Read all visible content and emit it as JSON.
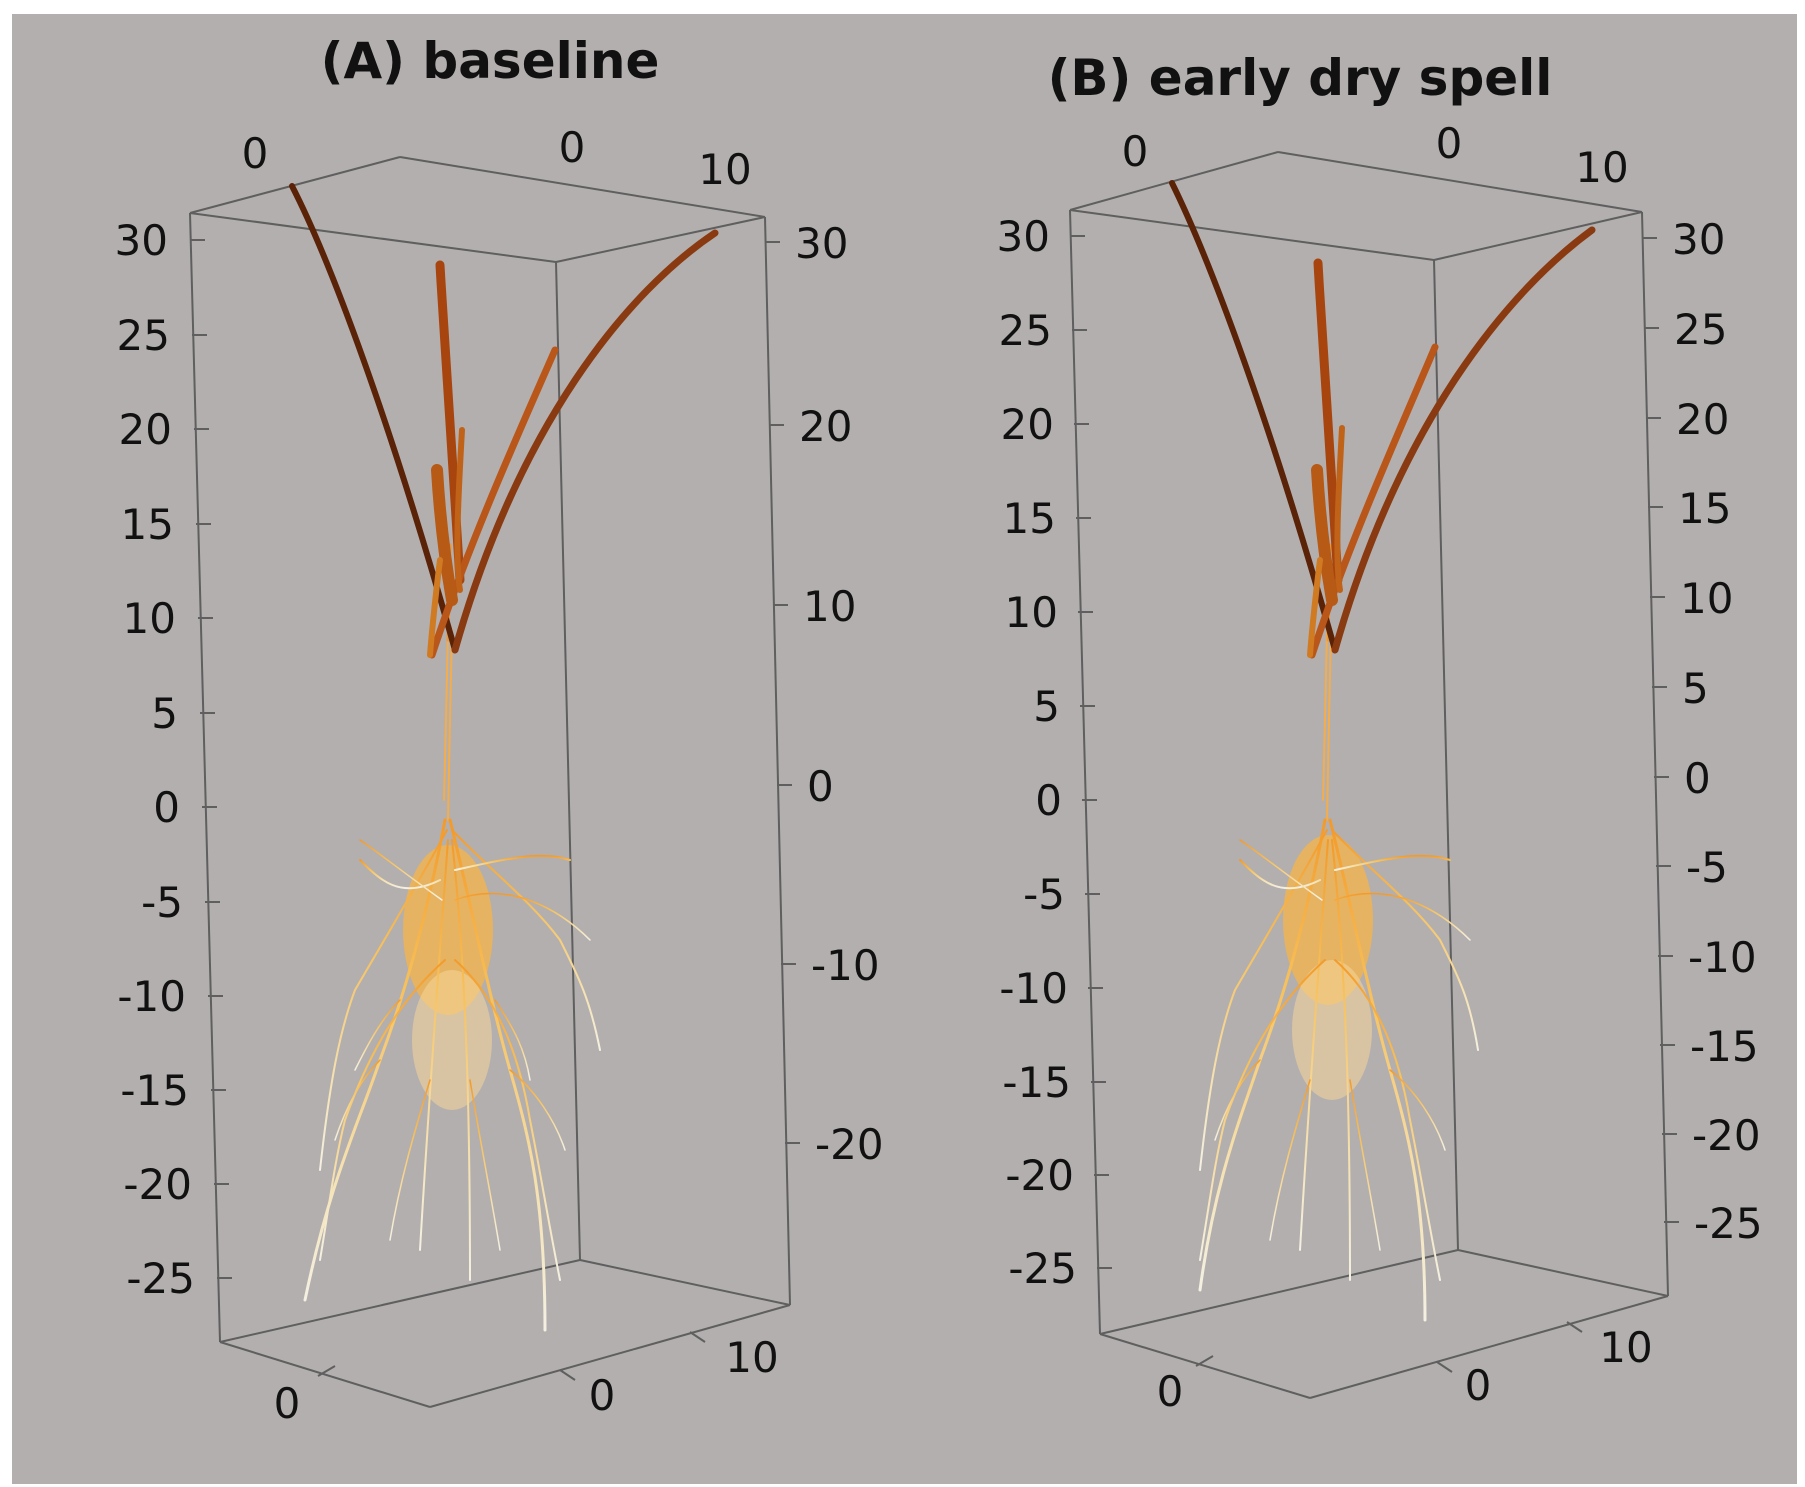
{
  "panels": [
    {
      "id": "A",
      "title": "(A) baseline",
      "top_ticks": [
        "0",
        "0",
        "10"
      ],
      "bottom_ticks": [
        "0",
        "0",
        "10"
      ],
      "left_ticks": [
        "30",
        "25",
        "20",
        "15",
        "10",
        "5",
        "0",
        "-5",
        "-10",
        "-15",
        "-20",
        "-25"
      ],
      "right_ticks": [
        "30",
        "20",
        "10",
        "0",
        "-10",
        "-20"
      ]
    },
    {
      "id": "B",
      "title": "(B) early dry spell",
      "top_ticks": [
        "0",
        "0",
        "10"
      ],
      "bottom_ticks": [
        "0",
        "0",
        "10"
      ],
      "left_ticks": [
        "30",
        "25",
        "20",
        "15",
        "10",
        "5",
        "0",
        "-5",
        "-10",
        "-15",
        "-20",
        "-25"
      ],
      "right_ticks": [
        "30",
        "25",
        "20",
        "15",
        "10",
        "5",
        "0",
        "-5",
        "-10",
        "-15",
        "-20",
        "-25"
      ]
    }
  ],
  "colors": {
    "background": "#b3afae",
    "stem_dark": "#5a2308",
    "stem_mid": "#8e3d0f",
    "stem_light": "#b95a17",
    "root_top": "#f6b042",
    "root_bottom": "#f7eed8"
  }
}
